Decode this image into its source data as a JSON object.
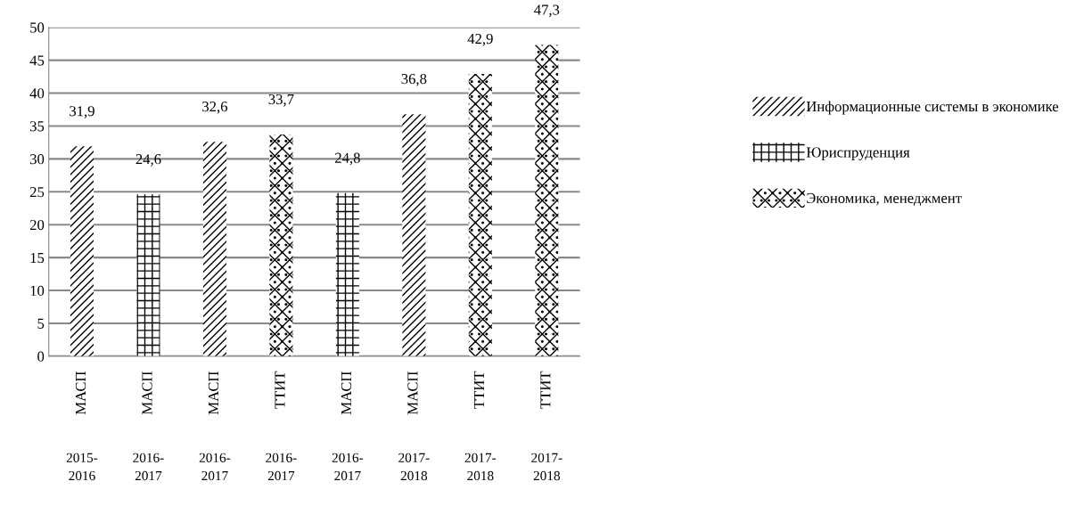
{
  "chart_data": {
    "type": "bar",
    "categories": [
      "МАСП\n2015-\n2016",
      "МАСП\n2016-\n2017",
      "МАСП\n2016-\n2017",
      "ТТИТ\n2016-\n2017",
      "МАСП\n2016-\n2017",
      "МАСП\n2017-\n2018",
      "ТТИТ\n2017-\n2018",
      "ТТИТ\n2017-\n2018"
    ],
    "series": [
      {
        "name": "Информационные системы в экономике",
        "color": "#000000",
        "values": [
          31.9,
          null,
          32.6,
          null,
          null,
          36.8,
          null,
          null
        ],
        "value_labels": [
          "31,9",
          null,
          "32,6",
          null,
          null,
          "36,8",
          null,
          null
        ]
      },
      {
        "name": "Юриспруденция",
        "color": "#000000",
        "values": [
          null,
          24.6,
          null,
          null,
          24.8,
          null,
          null,
          null
        ],
        "value_labels": [
          null,
          "24,6",
          null,
          null,
          "24,8",
          null,
          null,
          null
        ]
      },
      {
        "name": "Экономика, менеджмент",
        "color": "#000000",
        "values": [
          null,
          null,
          null,
          33.7,
          null,
          null,
          42.9,
          47.3
        ],
        "value_labels": [
          null,
          null,
          null,
          "33,7",
          null,
          null,
          "42,9",
          "47,3"
        ]
      }
    ],
    "ylim": [
      0,
      50
    ],
    "yticks": [
      0,
      5,
      10,
      15,
      20,
      25,
      30,
      35,
      40,
      45,
      50
    ],
    "grid": "y",
    "legend": "right"
  }
}
